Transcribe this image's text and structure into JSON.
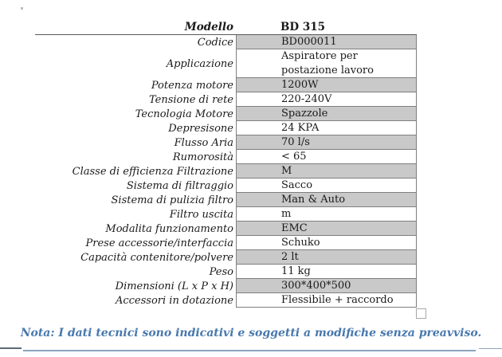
{
  "header": {
    "model_label": "Modello",
    "model_value": "BD 315"
  },
  "table": {
    "rows": [
      {
        "label": "Codice",
        "value": "BD000011",
        "shaded": true
      },
      {
        "label": "Applicazione",
        "value": "Aspiratore per postazione lavoro",
        "shaded": false,
        "tall": true
      },
      {
        "label": "Potenza motore",
        "value": "1200W",
        "shaded": true
      },
      {
        "label": "Tensione di rete",
        "value": "220-240V",
        "shaded": false
      },
      {
        "label": "Tecnologia Motore",
        "value": "Spazzole",
        "shaded": true
      },
      {
        "label": "Depresisone",
        "value": "24 KPA",
        "shaded": false
      },
      {
        "label": "Flusso Aria",
        "value": "70 l/s",
        "shaded": true
      },
      {
        "label": "Rumorosità",
        "value": "< 65",
        "shaded": false
      },
      {
        "label": "Classe di efficienza Filtrazione",
        "value": "M",
        "shaded": true
      },
      {
        "label": "Sistema di filtraggio",
        "value": "Sacco",
        "shaded": false
      },
      {
        "label": "Sistema di pulizia filtro",
        "value": "Man & Auto",
        "shaded": true
      },
      {
        "label": "Filtro uscita",
        "value": "m",
        "shaded": false
      },
      {
        "label": "Modalita funzionamento",
        "value": "EMC",
        "shaded": true
      },
      {
        "label": "Prese accessorie/interfaccia",
        "value": "Schuko",
        "shaded": false
      },
      {
        "label": "Capacità contenitore/polvere",
        "value": "2 lt",
        "shaded": true
      },
      {
        "label": "Peso",
        "value": "11 kg",
        "shaded": false
      },
      {
        "label": "Dimensioni (L x P x H)",
        "value": "300*400*500",
        "shaded": true
      },
      {
        "label": "Accessori in dotazione",
        "value": "Flessibile + raccordo",
        "shaded": false
      }
    ]
  },
  "note": "Nota: I dati tecnici sono indicativi e soggetti a modifiche senza preavviso.",
  "colors": {
    "shaded_cell": "#c9c9c9",
    "cell_border": "#7f7f7f",
    "title_rule": "#595959",
    "note_blue": "#4878ae",
    "bottom_rule": "#8aa4bd"
  }
}
